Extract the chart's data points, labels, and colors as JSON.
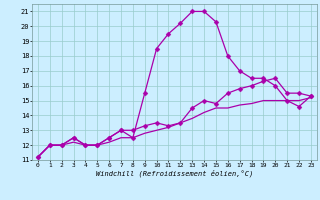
{
  "background_color": "#cceeff",
  "line_color": "#aa00aa",
  "grid_color": "#99cccc",
  "xlim": [
    -0.5,
    23.5
  ],
  "ylim": [
    11,
    21.5
  ],
  "yticks": [
    11,
    12,
    13,
    14,
    15,
    16,
    17,
    18,
    19,
    20,
    21
  ],
  "xticks": [
    0,
    1,
    2,
    3,
    4,
    5,
    6,
    7,
    8,
    9,
    10,
    11,
    12,
    13,
    14,
    15,
    16,
    17,
    18,
    19,
    20,
    21,
    22,
    23
  ],
  "xlabel": "Windchill (Refroidissement éolien,°C)",
  "line1_y": [
    11.2,
    12.0,
    12.0,
    12.5,
    12.0,
    12.0,
    12.5,
    13.0,
    12.5,
    15.5,
    18.5,
    19.5,
    20.2,
    21.0,
    21.0,
    20.3,
    18.0,
    17.0,
    16.5,
    16.5,
    16.0,
    15.0,
    14.6,
    15.3
  ],
  "line2_y": [
    11.2,
    12.0,
    12.0,
    12.5,
    12.0,
    12.0,
    12.5,
    13.0,
    13.0,
    13.3,
    13.5,
    13.3,
    13.5,
    14.5,
    15.0,
    14.8,
    15.5,
    15.8,
    16.0,
    16.3,
    16.5,
    15.5,
    15.5,
    15.3
  ],
  "line3_y": [
    11.2,
    12.0,
    12.0,
    12.2,
    12.0,
    12.0,
    12.2,
    12.5,
    12.5,
    12.8,
    13.0,
    13.2,
    13.5,
    13.8,
    14.2,
    14.5,
    14.5,
    14.7,
    14.8,
    15.0,
    15.0,
    15.0,
    15.0,
    15.2
  ],
  "markersize": 2.5,
  "linewidth": 0.9
}
